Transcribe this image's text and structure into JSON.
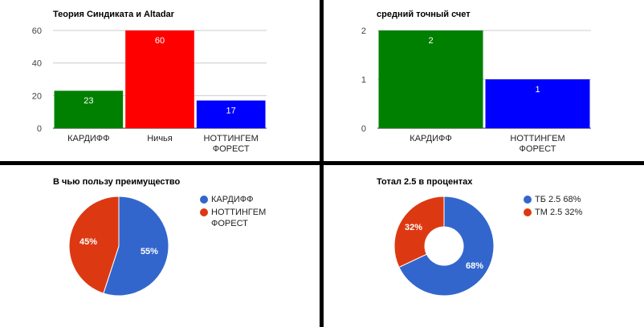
{
  "chart_data": [
    {
      "type": "bar",
      "title": "Теория Синдиката и Altadar",
      "categories": [
        "КАРДИФФ",
        "Ничья",
        "НОТТИНГЕМ ФОРЕСТ"
      ],
      "values": [
        23,
        60,
        17
      ],
      "colors": [
        "#008000",
        "#ff0000",
        "#0000ff"
      ],
      "ylim": [
        0,
        60
      ],
      "yticks": [
        0,
        20,
        40,
        60
      ],
      "data_labels": [
        "23",
        "60",
        "17"
      ],
      "grid": true
    },
    {
      "type": "bar",
      "title": "средний точный счет",
      "categories": [
        "КАРДИФФ",
        "НОТТИНГЕМ ФОРЕСТ"
      ],
      "values": [
        2,
        1
      ],
      "colors": [
        "#008000",
        "#0000ff"
      ],
      "ylim": [
        0,
        2
      ],
      "yticks": [
        0,
        1,
        2
      ],
      "data_labels": [
        "2",
        "1"
      ],
      "grid": true
    },
    {
      "type": "pie",
      "title": "В чью пользу преимущество",
      "labels": [
        "КАРДИФФ",
        "НОТТИНГЕМ ФОРЕСТ"
      ],
      "values": [
        55,
        45
      ],
      "slice_labels": [
        "55%",
        "45%"
      ],
      "colors": [
        "#3366cc",
        "#dc3912"
      ],
      "legend": "right"
    },
    {
      "type": "pie",
      "donut": true,
      "title": "Тотал 2.5 в процентах",
      "labels": [
        "ТБ 2.5 68%",
        "ТМ 2.5 32%"
      ],
      "values": [
        68,
        32
      ],
      "slice_labels": [
        "68%",
        "32%"
      ],
      "colors": [
        "#3366cc",
        "#dc3912"
      ],
      "legend": "right"
    }
  ]
}
